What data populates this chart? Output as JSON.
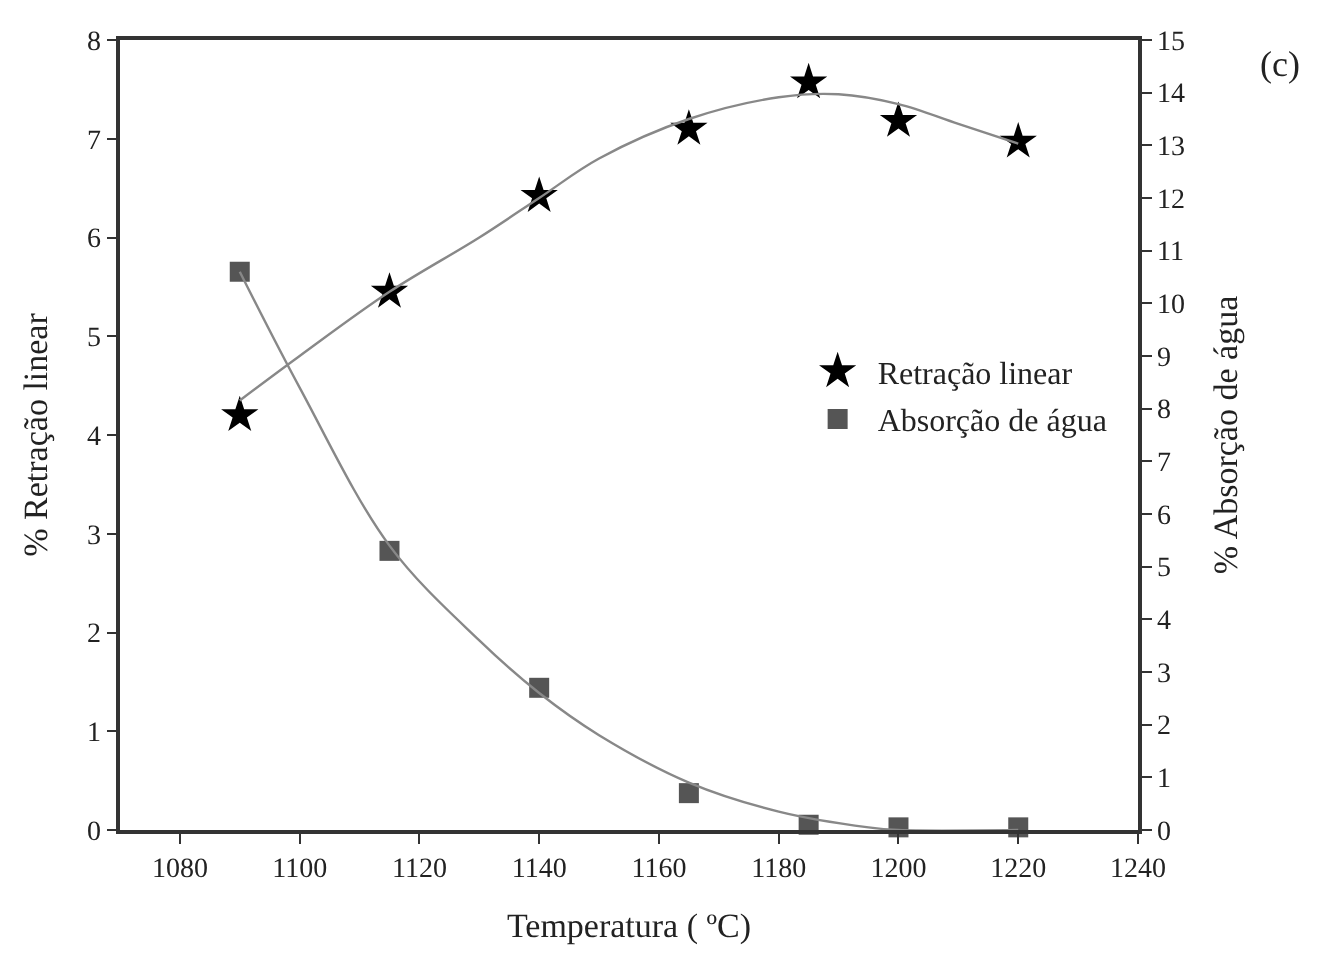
{
  "chart_data": {
    "type": "scatter",
    "xlabel": "Temperatura ( ºC)",
    "ylabel": "% Retração linear",
    "y2label": "% Absorção de água",
    "xlim": [
      1070,
      1240
    ],
    "xticks": [
      1080,
      1100,
      1120,
      1140,
      1160,
      1180,
      1200,
      1220,
      1240
    ],
    "ylim": [
      0,
      8
    ],
    "yticks": [
      0,
      1,
      2,
      3,
      4,
      5,
      6,
      7,
      8
    ],
    "y2lim": [
      0,
      15
    ],
    "y2ticks": [
      0,
      1,
      2,
      3,
      4,
      5,
      6,
      7,
      8,
      9,
      10,
      11,
      12,
      13,
      14,
      15
    ],
    "legend": "right",
    "annotations": [
      "(c)"
    ],
    "series": [
      {
        "name": "Retração linear",
        "marker": "star",
        "color": "#000000",
        "x": [
          1090,
          1115,
          1140,
          1165,
          1185,
          1200,
          1220
        ],
        "values": [
          4.2,
          5.45,
          6.42,
          7.1,
          7.57,
          7.18,
          6.97
        ]
      },
      {
        "name": "Absorção de água",
        "marker": "square",
        "color": "#555555",
        "axis": "y2",
        "x": [
          1090,
          1115,
          1140,
          1165,
          1185,
          1200,
          1220
        ],
        "values": [
          10.6,
          5.3,
          2.7,
          0.7,
          0.1,
          0.05,
          0.05
        ]
      },
      {
        "type": "line",
        "marker": "none",
        "color": "#888888",
        "x": [
          1090,
          1100,
          1115,
          1130,
          1140,
          1150,
          1165,
          1180,
          1190,
          1200,
          1210,
          1220
        ],
        "values": [
          4.35,
          4.8,
          5.45,
          6.0,
          6.4,
          6.8,
          7.2,
          7.42,
          7.45,
          7.35,
          7.15,
          6.95
        ]
      },
      {
        "type": "line",
        "marker": "none",
        "color": "#888888",
        "axis": "y2",
        "x": [
          1090,
          1100,
          1115,
          1130,
          1140,
          1150,
          1165,
          1180,
          1195,
          1200,
          1220
        ],
        "values": [
          10.6,
          8.4,
          5.4,
          3.6,
          2.6,
          1.8,
          0.9,
          0.35,
          0.05,
          0.0,
          0.0
        ]
      }
    ]
  }
}
